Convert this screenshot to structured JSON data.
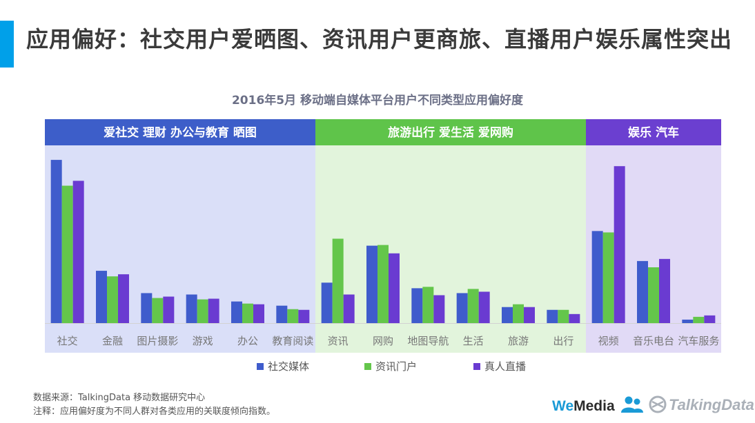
{
  "page": {
    "title": "应用偏好：社交用户爱晒图、资讯用户更商旅、直播用户娱乐属性突出"
  },
  "chart_data": {
    "type": "bar",
    "title": "2016年5月 移动端自媒体平台用户不同类型应用偏好度",
    "xlabel": "",
    "ylabel": "",
    "grid": false,
    "legend_position": "bottom",
    "ylim": [
      0,
      240
    ],
    "groups": [
      {
        "label": "爱社交 理财 办公与教育 晒图",
        "color": "#3d5ec9",
        "bg": "#dadff8",
        "categories": [
          "社交",
          "金融",
          "图片摄影",
          "游戏",
          "办公",
          "教育阅读"
        ]
      },
      {
        "label": "旅游出行 爱生活 爱网购",
        "color": "#5fc44a",
        "bg": "#e2f4dc",
        "categories": [
          "资讯",
          "网购",
          "地图导航",
          "生活",
          "旅游",
          "出行"
        ]
      },
      {
        "label": "娱乐 汽车",
        "color": "#6b3fd0",
        "bg": "#e1daf6",
        "categories": [
          "视频",
          "音乐电台",
          "汽车服务"
        ]
      }
    ],
    "categories": [
      "社交",
      "金融",
      "图片摄影",
      "游戏",
      "办公",
      "教育阅读",
      "资讯",
      "网购",
      "地图导航",
      "生活",
      "旅游",
      "出行",
      "视频",
      "音乐电台",
      "汽车服务"
    ],
    "series": [
      {
        "name": "社交媒体",
        "color": "#3f5ccc",
        "values": [
          234,
          75,
          43,
          41,
          31,
          25,
          58,
          111,
          50,
          43,
          23,
          19,
          132,
          89,
          5
        ]
      },
      {
        "name": "资讯门户",
        "color": "#64c64b",
        "values": [
          197,
          67,
          36,
          34,
          28,
          20,
          121,
          112,
          52,
          49,
          27,
          19,
          130,
          80,
          9
        ]
      },
      {
        "name": "真人直播",
        "color": "#6a3bd1",
        "values": [
          204,
          70,
          38,
          35,
          27,
          19,
          41,
          100,
          40,
          45,
          23,
          13,
          225,
          92,
          11
        ]
      }
    ]
  },
  "footer": {
    "source": "数据来源：TalkingData 移动数据研究中心",
    "note": "注释：应用偏好度为不同人群对各类应用的关联度倾向指数。"
  },
  "logos": {
    "wemedia_we": "We",
    "wemedia_media": "Media",
    "talkingdata": "TalkingData"
  }
}
